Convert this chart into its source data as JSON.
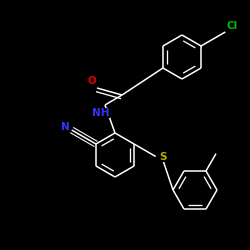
{
  "background_color": "#000000",
  "bond_color": "#ffffff",
  "atom_colors": {
    "Cl": "#00bb00",
    "N": "#3333ff",
    "O": "#dd0000",
    "S": "#bbaa00",
    "C": "#ffffff",
    "H": "#ffffff"
  },
  "font_size": 7.5,
  "line_width": 1.1,
  "ring_r": 0.22,
  "xlim": [
    0.0,
    2.5
  ],
  "ylim": [
    0.0,
    2.5
  ]
}
